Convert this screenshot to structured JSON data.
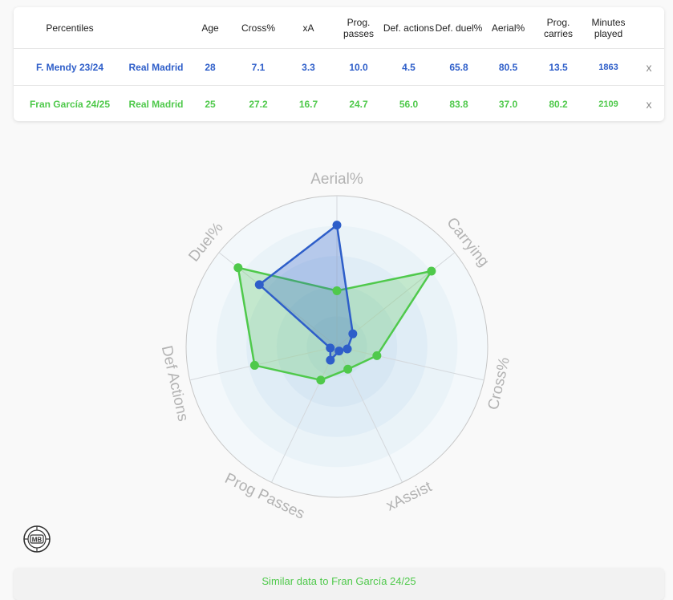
{
  "table": {
    "headers": [
      "Percentiles",
      "",
      "Age",
      "Cross%",
      "xA",
      "Prog. passes",
      "Def. actions",
      "Def. duel%",
      "Aerial%",
      "Prog. carries",
      "Minutes played",
      ""
    ],
    "rows": [
      {
        "player": "F. Mendy 23/24",
        "team": "Real Madrid",
        "age": "28",
        "cross": "7.1",
        "xa": "3.3",
        "prog_passes": "10.0",
        "def_actions": "4.5",
        "def_duel": "65.8",
        "aerial": "80.5",
        "prog_carries": "13.5",
        "minutes": "1863",
        "remove": "x"
      },
      {
        "player": "Fran García 24/25",
        "team": "Real Madrid",
        "age": "25",
        "cross": "27.2",
        "xa": "16.7",
        "prog_passes": "24.7",
        "def_actions": "56.0",
        "def_duel": "83.8",
        "aerial": "37.0",
        "prog_carries": "80.2",
        "minutes": "2109",
        "remove": "x"
      }
    ]
  },
  "colors": {
    "series1": "#2e5ec9",
    "series2": "#4fc94b"
  },
  "chart_data": {
    "type": "radar",
    "axes": [
      "Aerial%",
      "Carrying",
      "Cross%",
      "xAssist",
      "Prog Passes",
      "Def Actions",
      "Duel%"
    ],
    "range": [
      0,
      100
    ],
    "series": [
      {
        "name": "F. Mendy 23/24",
        "color": "#2e5ec9",
        "values": [
          80.5,
          13.5,
          7.1,
          3.3,
          10.0,
          4.5,
          65.8
        ]
      },
      {
        "name": "Fran García 24/25",
        "color": "#4fc94b",
        "values": [
          37.0,
          80.2,
          27.2,
          16.7,
          24.7,
          56.0,
          83.8
        ]
      }
    ]
  },
  "logo_text": "MB",
  "similar_label": "Similar data to Fran García 24/25"
}
